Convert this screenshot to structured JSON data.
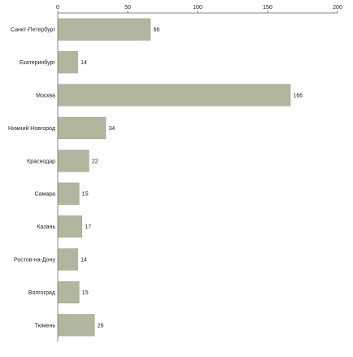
{
  "chart_data": {
    "type": "bar",
    "orientation": "horizontal",
    "categories": [
      "Санкт-Петербург",
      "Екатеринбург",
      "Москва",
      "Нижний Новгород",
      "Краснодар",
      "Самара",
      "Казань",
      "Ростов-на-Дону",
      "Волгоград",
      "Тюмень"
    ],
    "values": [
      66,
      14,
      166,
      34,
      22,
      15,
      17,
      14,
      15,
      26
    ],
    "xlim": [
      0,
      200
    ],
    "xticks": [
      0,
      50,
      100,
      150,
      200
    ],
    "axis_position": "top",
    "title": "",
    "xlabel": "",
    "ylabel": "",
    "grid": false,
    "legend": "none",
    "data_labels": true,
    "colors": {
      "bar": "#b1b69f",
      "bar_stroke": "#9ea28c",
      "axis": "#888888",
      "text": "#222222"
    }
  }
}
